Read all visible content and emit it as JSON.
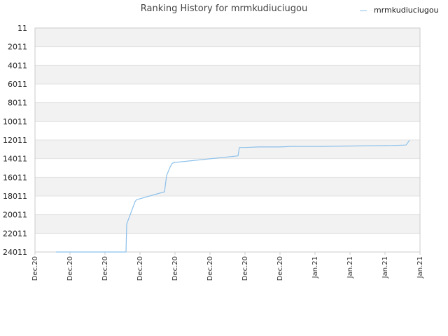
{
  "chart_data": {
    "type": "line",
    "title": "Ranking History for mrmkudiuciugou",
    "legend": {
      "position": "top-right",
      "entries": [
        "mrmkudiuciugou"
      ]
    },
    "colors": {
      "line": "#8cc0ea",
      "band": "#f2f2f2",
      "grid": "#e2e2e2",
      "axis": "#cccccc"
    },
    "grid": true,
    "y_inverted": true,
    "ylim": [
      11,
      24011
    ],
    "yticks": [
      "11",
      "2011",
      "4011",
      "6011",
      "8011",
      "10011",
      "12011",
      "14011",
      "16011",
      "18011",
      "20011",
      "22011",
      "24011"
    ],
    "xticks": [
      "Dec.20",
      "Dec.20",
      "Dec.20",
      "Dec.20",
      "Dec.20",
      "Dec.20",
      "Dec.20",
      "Dec.20",
      "Jan.21",
      "Jan.21",
      "Jan.21",
      "Jan.21"
    ],
    "xlim_ticks": [
      0,
      11
    ],
    "series": [
      {
        "name": "mrmkudiuciugou",
        "points": [
          [
            0.6,
            24011
          ],
          [
            2.6,
            24011
          ],
          [
            2.62,
            21011
          ],
          [
            2.7,
            20211
          ],
          [
            2.78,
            19411
          ],
          [
            2.86,
            18611
          ],
          [
            2.9,
            18411
          ],
          [
            3.7,
            17561
          ],
          [
            3.76,
            15811
          ],
          [
            3.86,
            14911
          ],
          [
            3.92,
            14511
          ],
          [
            4.0,
            14411
          ],
          [
            5.8,
            13711
          ],
          [
            5.84,
            12811
          ],
          [
            6.0,
            12811
          ],
          [
            6.4,
            12751
          ],
          [
            7.0,
            12751
          ],
          [
            7.3,
            12701
          ],
          [
            8.2,
            12701
          ],
          [
            9.2,
            12651
          ],
          [
            10.2,
            12601
          ],
          [
            10.6,
            12551
          ],
          [
            10.7,
            12051
          ]
        ]
      }
    ]
  }
}
